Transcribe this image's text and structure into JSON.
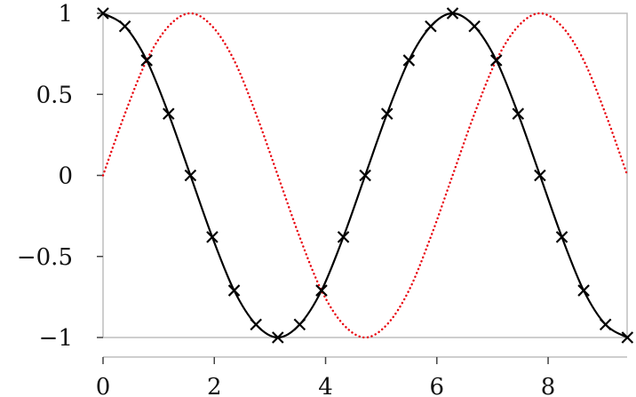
{
  "chart_data": {
    "type": "line",
    "xlim": [
      0,
      9.42
    ],
    "ylim": [
      -1,
      1
    ],
    "x_ticks": [
      0,
      2,
      4,
      6,
      8
    ],
    "x_tick_labels": [
      "0",
      "2",
      "4",
      "6",
      "8"
    ],
    "y_ticks": [
      1,
      0.5,
      0,
      -0.5,
      -1
    ],
    "y_tick_labels": [
      "1",
      "0.5",
      "0",
      "−0.5",
      "−1"
    ],
    "grid": false,
    "legend": "none",
    "series": [
      {
        "style": "solid-with-x-markers",
        "color": "#000000",
        "markers": {
          "x": [
            0,
            0.393,
            0.785,
            1.178,
            1.571,
            1.963,
            2.356,
            2.749,
            3.142,
            3.534,
            3.927,
            4.32,
            4.712,
            5.105,
            5.498,
            5.89,
            6.283,
            6.676,
            7.069,
            7.461,
            7.854,
            8.247,
            8.639,
            9.032,
            9.425
          ],
          "y": [
            1,
            0.92,
            0.71,
            0.38,
            0,
            -0.38,
            -0.71,
            -0.92,
            -1,
            -0.92,
            -0.71,
            -0.38,
            0,
            0.38,
            0.71,
            0.92,
            1,
            0.92,
            0.71,
            0.38,
            0,
            -0.38,
            -0.71,
            -0.92,
            -1
          ]
        },
        "curve": {
          "x": [
            0,
            0.393,
            0.785,
            1.178,
            1.571,
            1.963,
            2.356,
            2.749,
            3.142,
            3.534,
            3.927,
            4.32,
            4.712,
            5.105,
            5.498,
            5.89,
            6.283,
            6.676,
            7.069,
            7.461,
            7.854,
            8.247,
            8.639,
            9.032,
            9.425
          ],
          "y": [
            1,
            0.92,
            0.71,
            0.38,
            0,
            -0.38,
            -0.71,
            -0.92,
            -1,
            -0.92,
            -0.71,
            -0.38,
            0,
            0.38,
            0.71,
            0.92,
            1,
            0.92,
            0.71,
            0.38,
            0,
            -0.38,
            -0.71,
            -0.92,
            -1
          ]
        }
      },
      {
        "style": "dotted",
        "color": "#e8000b",
        "curve": {
          "x": [
            0,
            0.393,
            0.785,
            1.178,
            1.571,
            1.963,
            2.356,
            2.749,
            3.142,
            3.534,
            3.927,
            4.32,
            4.712,
            5.105,
            5.498,
            5.89,
            6.283,
            6.676,
            7.069,
            7.461,
            7.854,
            8.247,
            8.639,
            9.032,
            9.425
          ],
          "y": [
            0,
            0.38,
            0.71,
            0.92,
            1,
            0.92,
            0.71,
            0.38,
            0,
            -0.38,
            -0.71,
            -0.92,
            -1,
            -0.92,
            -0.71,
            -0.38,
            0,
            0.38,
            0.71,
            0.92,
            1,
            0.92,
            0.71,
            0.38,
            0
          ]
        }
      }
    ]
  }
}
